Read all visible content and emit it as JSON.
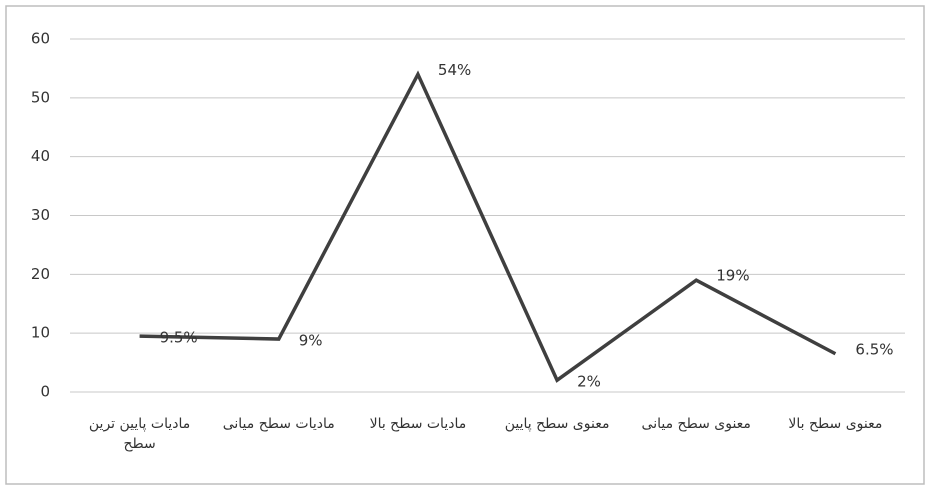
{
  "chart_data": {
    "type": "line",
    "categories": [
      "مادیات پایین ترین سطح",
      "مادیات سطح میانی",
      "مادیات سطح بالا",
      "معنوی سطح پایین",
      "معنوی سطح میانی",
      "معنوی سطح بالا"
    ],
    "values": [
      9.5,
      9,
      54,
      2,
      19,
      6.5
    ],
    "value_labels": [
      "9.5%",
      "9%",
      "54%",
      "2%",
      "19%",
      "6.5%"
    ],
    "color": "#3f3f3f",
    "ylim": [
      0,
      60
    ],
    "yticks": [
      0,
      10,
      20,
      30,
      40,
      50,
      60
    ],
    "grid": true
  }
}
